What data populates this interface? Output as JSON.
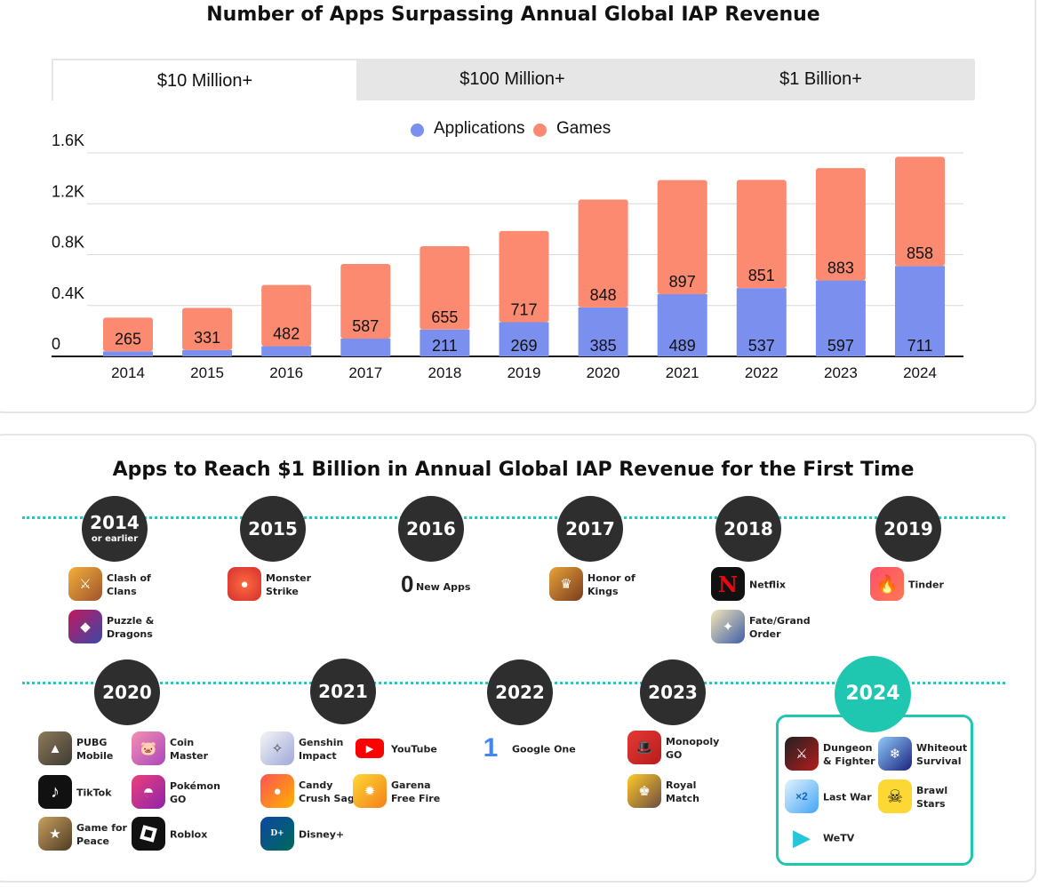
{
  "chart": {
    "title": "Number of Apps Surpassing Annual Global IAP Revenue",
    "tabs": [
      {
        "label": "$10 Million+",
        "active": true
      },
      {
        "label": "$100 Million+",
        "active": false
      },
      {
        "label": "$1 Billion+",
        "active": false
      }
    ],
    "legend": [
      {
        "label": "Applications",
        "color": "#7b90ee"
      },
      {
        "label": "Games",
        "color": "#fb8a70"
      }
    ]
  },
  "chart_data": {
    "type": "bar",
    "stacked": true,
    "categories": [
      "2014",
      "2015",
      "2016",
      "2017",
      "2018",
      "2019",
      "2020",
      "2021",
      "2022",
      "2023",
      "2024"
    ],
    "series": [
      {
        "name": "Applications",
        "color": "#7b90ee",
        "values": [
          40,
          50,
          80,
          140,
          211,
          269,
          385,
          489,
          537,
          597,
          711
        ],
        "labels": [
          "",
          "",
          "",
          "",
          "211",
          "269",
          "385",
          "489",
          "537",
          "597",
          "711"
        ]
      },
      {
        "name": "Games",
        "color": "#fb8a70",
        "values": [
          265,
          331,
          482,
          587,
          655,
          717,
          848,
          897,
          851,
          883,
          858
        ],
        "labels": [
          "265",
          "331",
          "482",
          "587",
          "655",
          "717",
          "848",
          "897",
          "851",
          "883",
          "858"
        ]
      }
    ],
    "yticks": [
      "0",
      "0.4K",
      "0.8K",
      "1.2K",
      "1.6K"
    ],
    "ytick_values": [
      0,
      400,
      800,
      1200,
      1600
    ],
    "ylim": [
      0,
      1600
    ],
    "grid": true
  },
  "timeline": {
    "title": "Apps to Reach $1 Billion in Annual Global IAP Revenue for the First Time",
    "zero_apps": {
      "number": "0",
      "label": "New Apps"
    },
    "years": [
      {
        "year": "2014",
        "sub": "or earlier",
        "apps": [
          {
            "name": "Clash of\nClans",
            "icon": "clash-of-clans-icon"
          },
          {
            "name": "Puzzle &\nDragons",
            "icon": "puzzle-dragons-icon"
          }
        ]
      },
      {
        "year": "2015",
        "apps": [
          {
            "name": "Monster\nStrike",
            "icon": "monster-strike-icon"
          }
        ]
      },
      {
        "year": "2016",
        "apps": []
      },
      {
        "year": "2017",
        "apps": [
          {
            "name": "Honor of\nKings",
            "icon": "honor-of-kings-icon"
          }
        ]
      },
      {
        "year": "2018",
        "apps": [
          {
            "name": "Netflix",
            "icon": "netflix-icon"
          },
          {
            "name": "Fate/Grand\nOrder",
            "icon": "fate-grand-order-icon"
          }
        ]
      },
      {
        "year": "2019",
        "apps": [
          {
            "name": "Tinder",
            "icon": "tinder-icon"
          }
        ]
      },
      {
        "year": "2020",
        "apps": [
          {
            "name": "PUBG\nMobile",
            "icon": "pubg-mobile-icon"
          },
          {
            "name": "Coin\nMaster",
            "icon": "coin-master-icon"
          },
          {
            "name": "TikTok",
            "icon": "tiktok-icon"
          },
          {
            "name": "Pokémon\nGO",
            "icon": "pokemon-go-icon"
          },
          {
            "name": "Game for\nPeace",
            "icon": "game-for-peace-icon"
          },
          {
            "name": "Roblox",
            "icon": "roblox-icon"
          }
        ]
      },
      {
        "year": "2021",
        "apps": [
          {
            "name": "Genshin\nImpact",
            "icon": "genshin-impact-icon"
          },
          {
            "name": "YouTube",
            "icon": "youtube-icon"
          },
          {
            "name": "Candy\nCrush Saga",
            "icon": "candy-crush-icon"
          },
          {
            "name": "Garena\nFree Fire",
            "icon": "free-fire-icon"
          },
          {
            "name": "Disney+",
            "icon": "disney-plus-icon"
          }
        ]
      },
      {
        "year": "2022",
        "apps": [
          {
            "name": "Google One",
            "icon": "google-one-icon"
          }
        ]
      },
      {
        "year": "2023",
        "apps": [
          {
            "name": "Monopoly\nGO",
            "icon": "monopoly-go-icon"
          },
          {
            "name": "Royal\nMatch",
            "icon": "royal-match-icon"
          }
        ]
      },
      {
        "year": "2024",
        "apps": [
          {
            "name": "Dungeon\n& Fighter",
            "icon": "dungeon-fighter-icon"
          },
          {
            "name": "Whiteout\nSurvival",
            "icon": "whiteout-survival-icon"
          },
          {
            "name": "Last War",
            "icon": "last-war-icon"
          },
          {
            "name": "Brawl\nStars",
            "icon": "brawl-stars-icon"
          },
          {
            "name": "WeTV",
            "icon": "wetv-icon"
          }
        ]
      }
    ]
  }
}
